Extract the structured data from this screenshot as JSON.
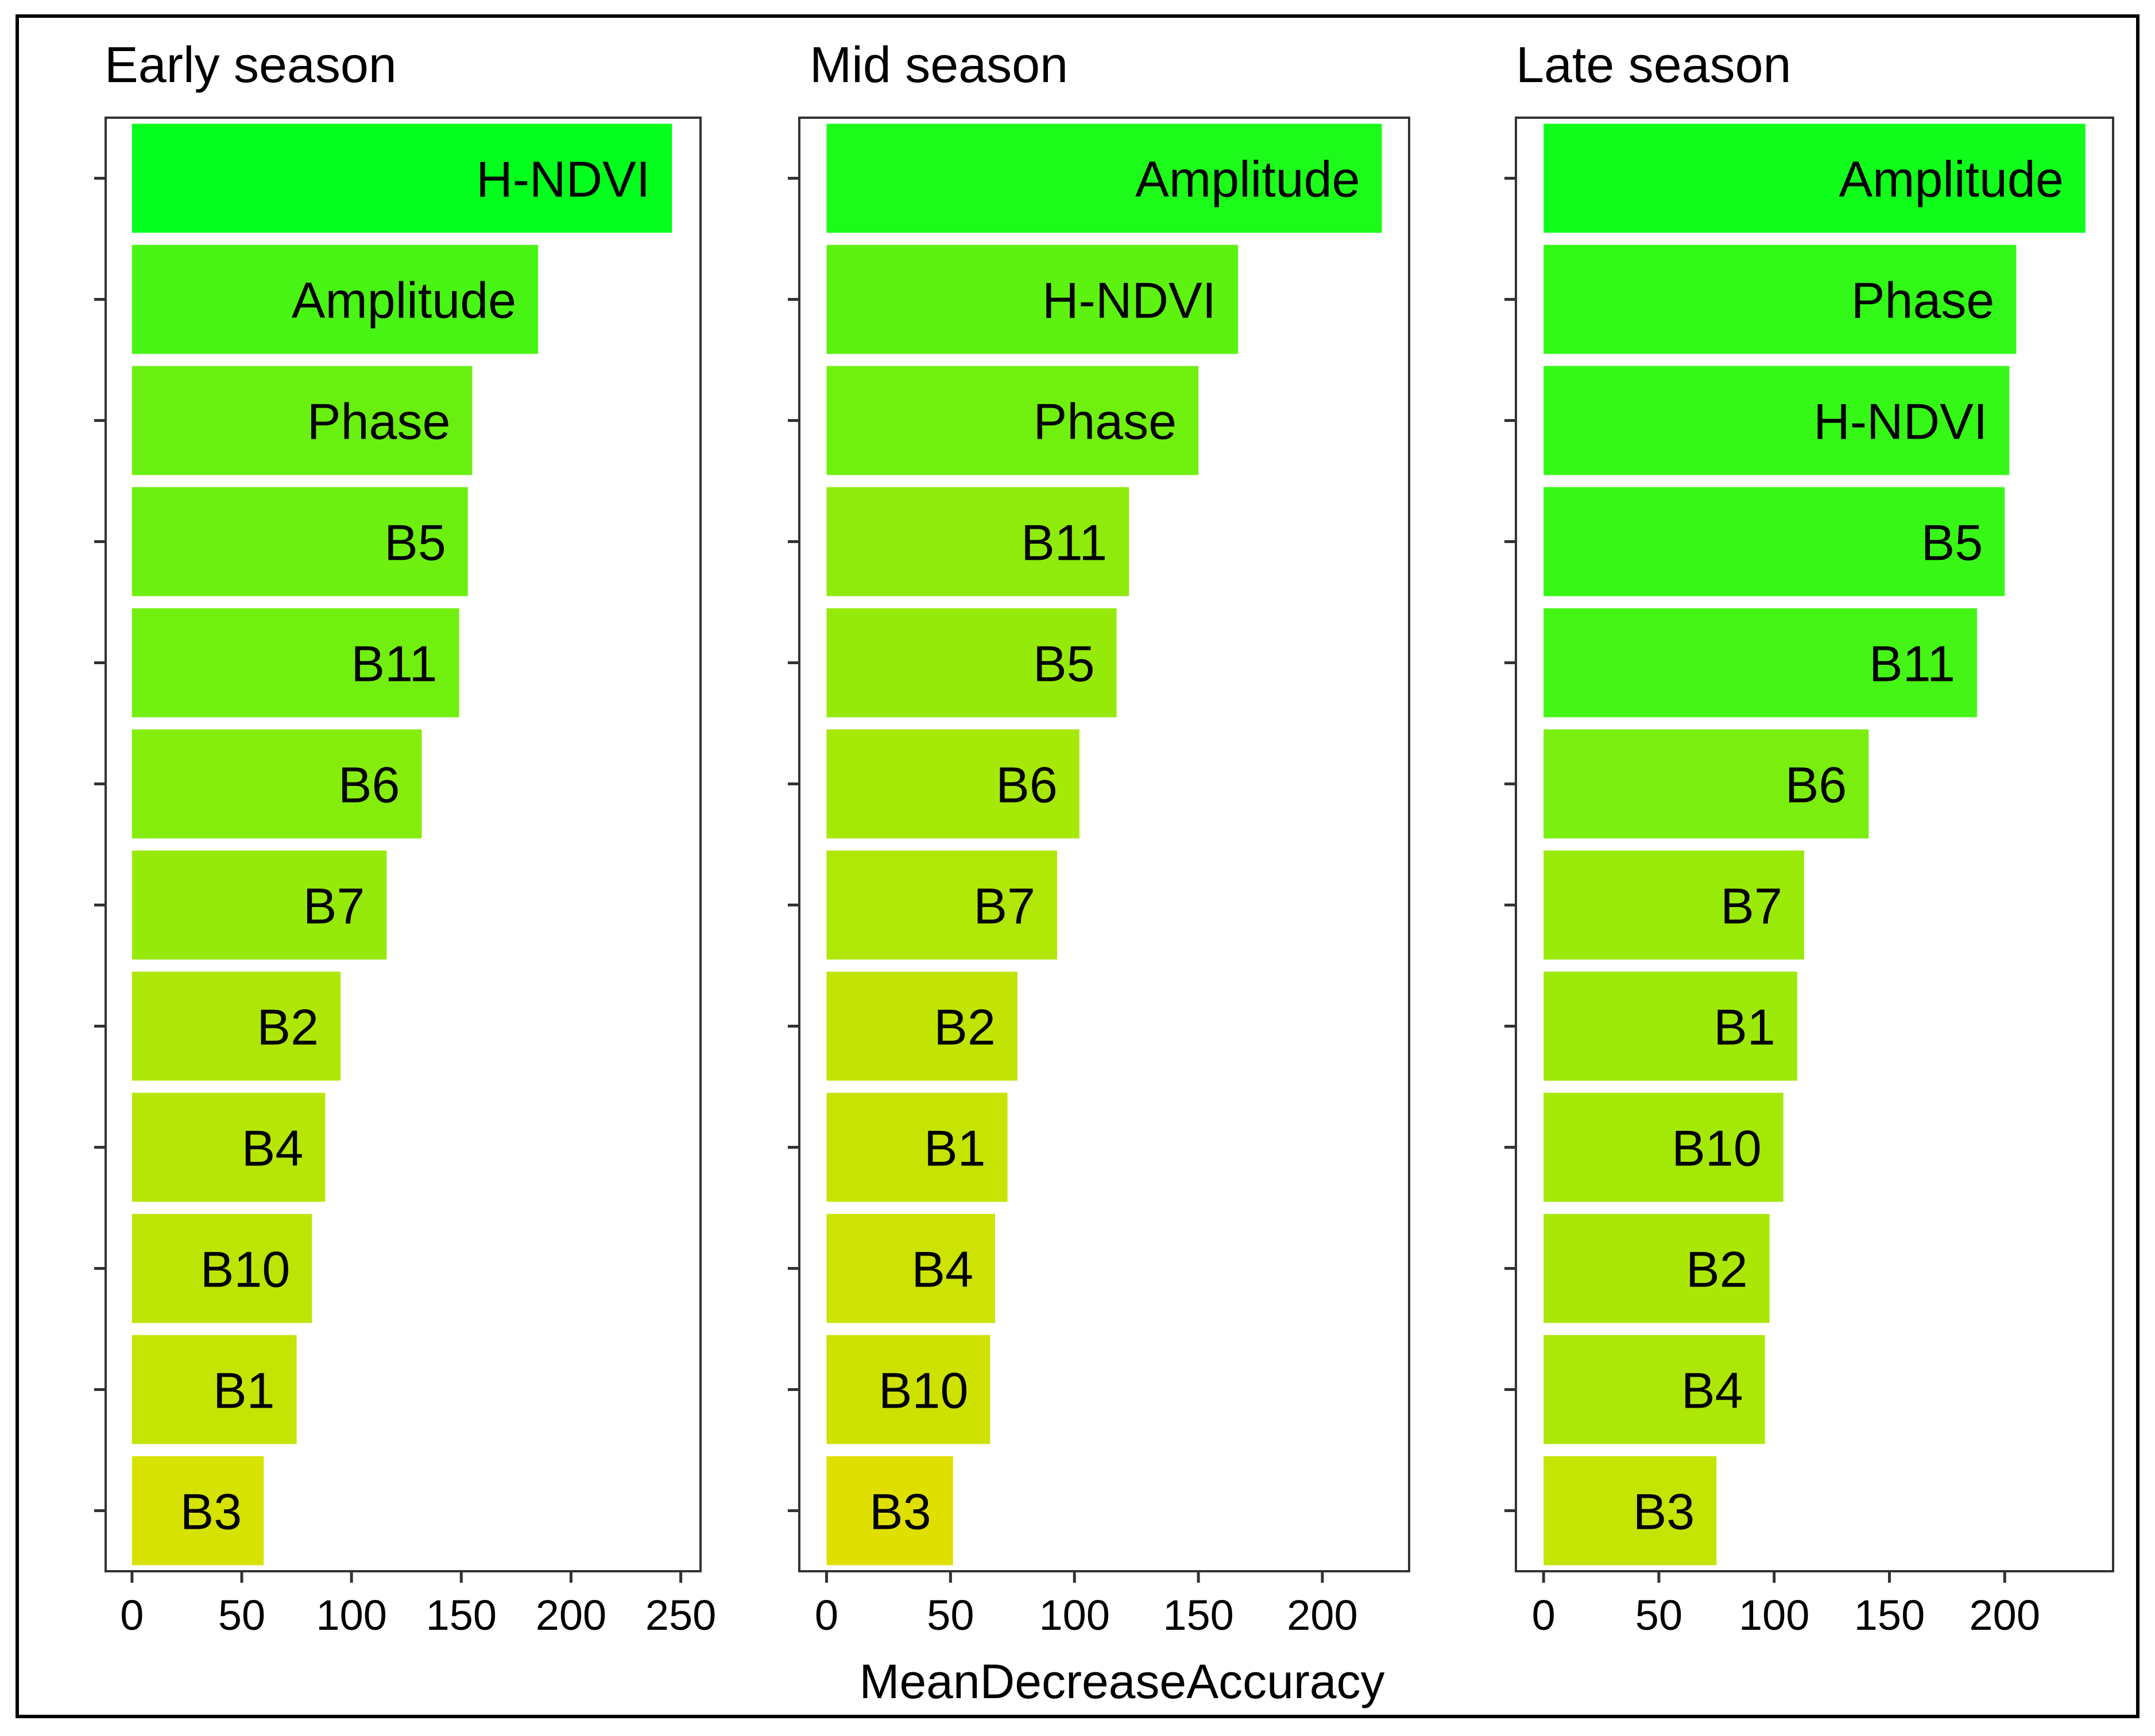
{
  "chart_data": [
    {
      "type": "bar",
      "orientation": "horizontal",
      "title": "Early season",
      "categories": [
        "H-NDVI",
        "Amplitude",
        "Phase",
        "B5",
        "B11",
        "B6",
        "B7",
        "B2",
        "B4",
        "B10",
        "B1",
        "B3"
      ],
      "values": [
        246,
        185,
        155,
        153,
        149,
        132,
        116,
        95,
        88,
        82,
        75,
        60
      ],
      "xlim": [
        -12,
        259
      ],
      "xticks": [
        "0",
        "50",
        "100",
        "150",
        "200",
        "250"
      ],
      "xtick_values": [
        0,
        50,
        100,
        150,
        200,
        250
      ]
    },
    {
      "type": "bar",
      "orientation": "horizontal",
      "title": "Mid season",
      "categories": [
        "Amplitude",
        "H-NDVI",
        "Phase",
        "B11",
        "B5",
        "B6",
        "B7",
        "B2",
        "B1",
        "B4",
        "B10",
        "B3"
      ],
      "values": [
        224,
        166,
        150,
        122,
        117,
        102,
        93,
        77,
        73,
        68,
        66,
        51
      ],
      "xlim": [
        -11,
        235
      ],
      "xticks": [
        "0",
        "50",
        "100",
        "150",
        "200"
      ],
      "xtick_values": [
        0,
        50,
        100,
        150,
        200
      ]
    },
    {
      "type": "bar",
      "orientation": "horizontal",
      "title": "Late season",
      "categories": [
        "Amplitude",
        "Phase",
        "H-NDVI",
        "B5",
        "B11",
        "B6",
        "B7",
        "B1",
        "B10",
        "B2",
        "B4",
        "B3"
      ],
      "values": [
        235,
        205,
        202,
        200,
        188,
        141,
        113,
        110,
        104,
        98,
        96,
        75
      ],
      "xlim": [
        -12,
        247
      ],
      "xticks": [
        "0",
        "50",
        "100",
        "150",
        "200"
      ],
      "xtick_values": [
        0,
        50,
        100,
        150,
        200
      ]
    }
  ],
  "xlabel": "MeanDecreaseAccuracy",
  "colors": {
    "scale_low": "#e0e000",
    "scale_high": "#00ff1e",
    "frame": "#000000",
    "panel_border": "#333333"
  }
}
